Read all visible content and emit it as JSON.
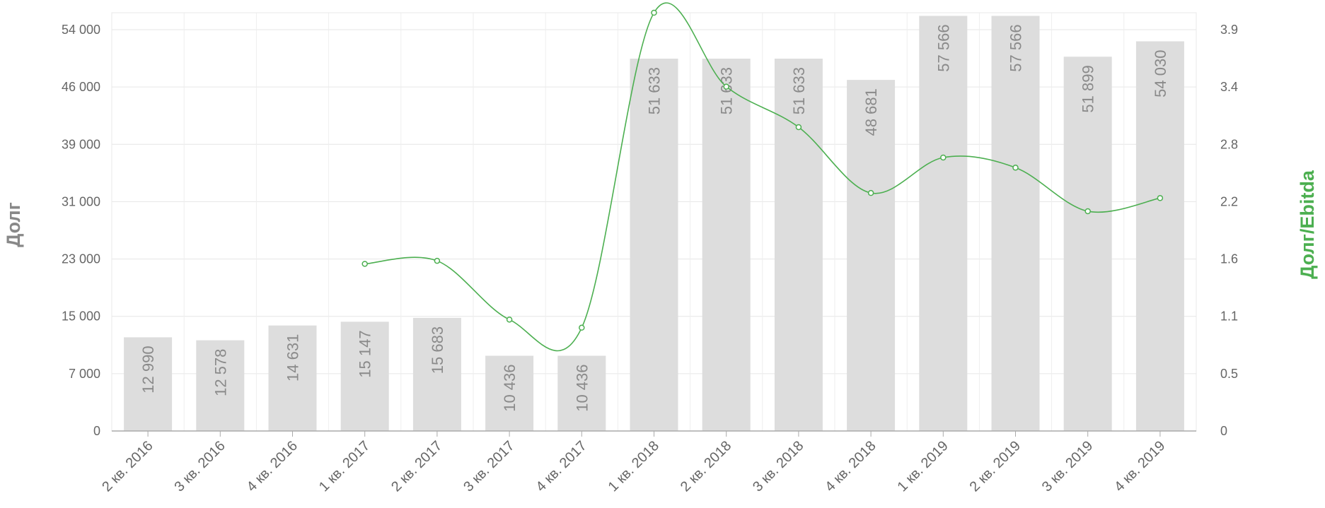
{
  "chart_data": {
    "type": "bar",
    "categories": [
      "2 кв. 2016",
      "3 кв. 2016",
      "4 кв. 2016",
      "1 кв. 2017",
      "2 кв. 2017",
      "3 кв. 2017",
      "4 кв. 2017",
      "1 кв. 2018",
      "2 кв. 2018",
      "3 кв. 2018",
      "4 кв. 2018",
      "1 кв. 2019",
      "2 кв. 2019",
      "3 кв. 2019",
      "4 кв. 2019"
    ],
    "series": [
      {
        "type": "bar",
        "axis": "left",
        "color": "#dddddd",
        "values": [
          12990,
          12578,
          14631,
          15147,
          15683,
          10436,
          10436,
          51633,
          51633,
          51633,
          48681,
          57566,
          57566,
          51899,
          54030
        ],
        "labels": [
          "12 990",
          "12 578",
          "14 631",
          "15 147",
          "15 683",
          "10 436",
          "10 436",
          "51 633",
          "51 633",
          "51 633",
          "48 681",
          "57 566",
          "57 566",
          "51 899",
          "54 030"
        ]
      },
      {
        "type": "line",
        "smooth": true,
        "axis": "right",
        "color": "#4caf50",
        "values": [
          null,
          null,
          null,
          1.65,
          1.68,
          1.1,
          1.02,
          4.13,
          3.4,
          3.0,
          2.35,
          2.7,
          2.6,
          2.17,
          2.3
        ]
      }
    ],
    "y_left": {
      "label": "Долг",
      "ticks": [
        "0",
        "7 000",
        "15 000",
        "23 000",
        "31 000",
        "39 000",
        "46 000",
        "54 000"
      ],
      "range": [
        0,
        58000
      ]
    },
    "y_right": {
      "label": "Долг/Ebitda",
      "label_color": "#4caf50",
      "ticks": [
        "0",
        "0.5",
        "1.1",
        "1.6",
        "2.2",
        "2.8",
        "3.4",
        "3.9"
      ],
      "range": [
        0,
        4.13
      ]
    },
    "grid": true,
    "legend": "none"
  }
}
